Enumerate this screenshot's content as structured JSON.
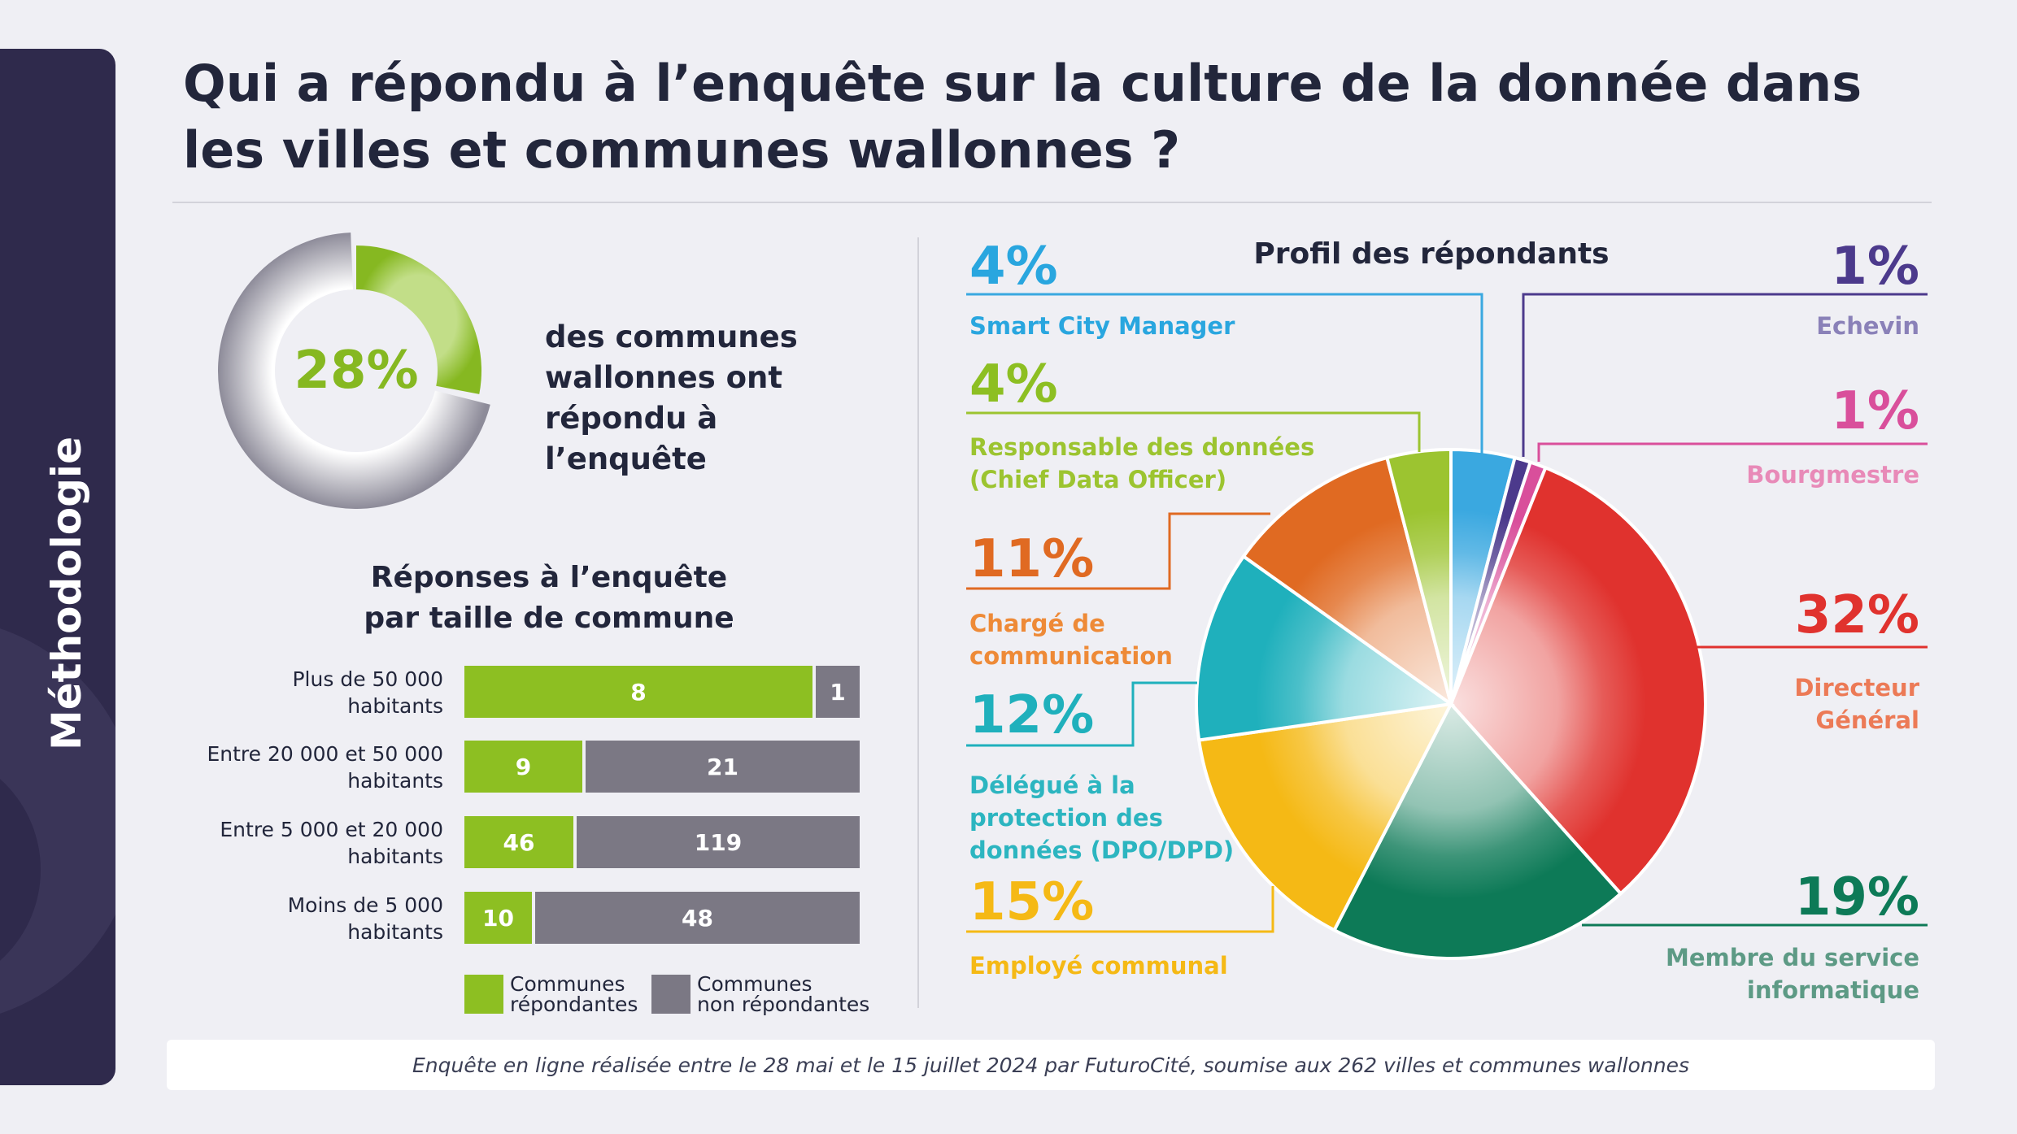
{
  "sidebar": {
    "label": "Méthodologie"
  },
  "header": {
    "title_line1": "Qui a répondu à l’enquête sur la culture de la donnée dans",
    "title_line2": "les villes et communes wallonnes ?"
  },
  "summary": {
    "percent_label": "28%",
    "percent_value": 28,
    "text_line1": "des communes",
    "text_line2": "wallonnes ont",
    "text_line3": "répondu à l’enquête",
    "colors": {
      "filled": "#8dbf22",
      "rest": "#9a98a6"
    }
  },
  "bar_section": {
    "title_line1": "Réponses à l’enquête",
    "title_line2": "par taille de commune"
  },
  "pie_section": {
    "title": "Profil des répondants"
  },
  "footer": {
    "text": "Enquête en ligne réalisée entre le 28 mai et le 15 juillet 2024 par FuturoCité, soumise aux 262 villes et communes wallonnes"
  },
  "chart_data": [
    {
      "type": "bar",
      "orientation": "horizontal",
      "stacked": true,
      "title": "Réponses à l’enquête par taille de commune",
      "categories": [
        {
          "line1": "Plus de 50 000",
          "line2": "habitants"
        },
        {
          "line1": "Entre 20 000 et 50 000",
          "line2": "habitants"
        },
        {
          "line1": "Entre 5 000 et 20 000",
          "line2": "habitants"
        },
        {
          "line1": "Moins de 5 000",
          "line2": "habitants"
        }
      ],
      "series": [
        {
          "name_line1": "Communes",
          "name_line2": "répondantes",
          "color": "#8dbf22",
          "values": [
            8,
            9,
            46,
            10
          ]
        },
        {
          "name_line1": "Communes",
          "name_line2": "non répondantes",
          "color": "#7b7884",
          "values": [
            1,
            21,
            119,
            48
          ]
        }
      ],
      "legend": "bottom"
    },
    {
      "type": "pie",
      "title": "Profil des répondants",
      "slices": [
        {
          "pct": "4%",
          "value": 4,
          "label_lines": [
            "Smart City Manager"
          ],
          "color": "#3aa8e0"
        },
        {
          "pct": "1%",
          "value": 1,
          "label_lines": [
            "Echevin"
          ],
          "color": "#4c3a8c",
          "label_color": "#8a81b8"
        },
        {
          "pct": "1%",
          "value": 1,
          "label_lines": [
            "Bourgmestre"
          ],
          "color": "#d94f9b",
          "label_color": "#e88ab8"
        },
        {
          "pct": "32%",
          "value": 32,
          "label_lines": [
            "Directeur",
            "Général"
          ],
          "color": "#e0322e",
          "label_color": "#ec7a56"
        },
        {
          "pct": "19%",
          "value": 19,
          "label_lines": [
            "Membre du service",
            "informatique"
          ],
          "color": "#0d7a57",
          "label_color": "#5d9a85"
        },
        {
          "pct": "15%",
          "value": 15,
          "label_lines": [
            "Employé communal"
          ],
          "color": "#f5b915"
        },
        {
          "pct": "12%",
          "value": 12,
          "label_lines": [
            "Délégué à la",
            "protection des",
            "données (DPO/DPD)"
          ],
          "color": "#1fb0bc"
        },
        {
          "pct": "11%",
          "value": 11,
          "label_lines": [
            "Chargé de",
            "communication"
          ],
          "color": "#e06a22",
          "label_color": "#ee8a37"
        },
        {
          "pct": "4%",
          "value": 4,
          "label_lines": [
            "Responsable des données",
            "(Chief Data Officer)"
          ],
          "color": "#9cc430"
        }
      ]
    }
  ]
}
